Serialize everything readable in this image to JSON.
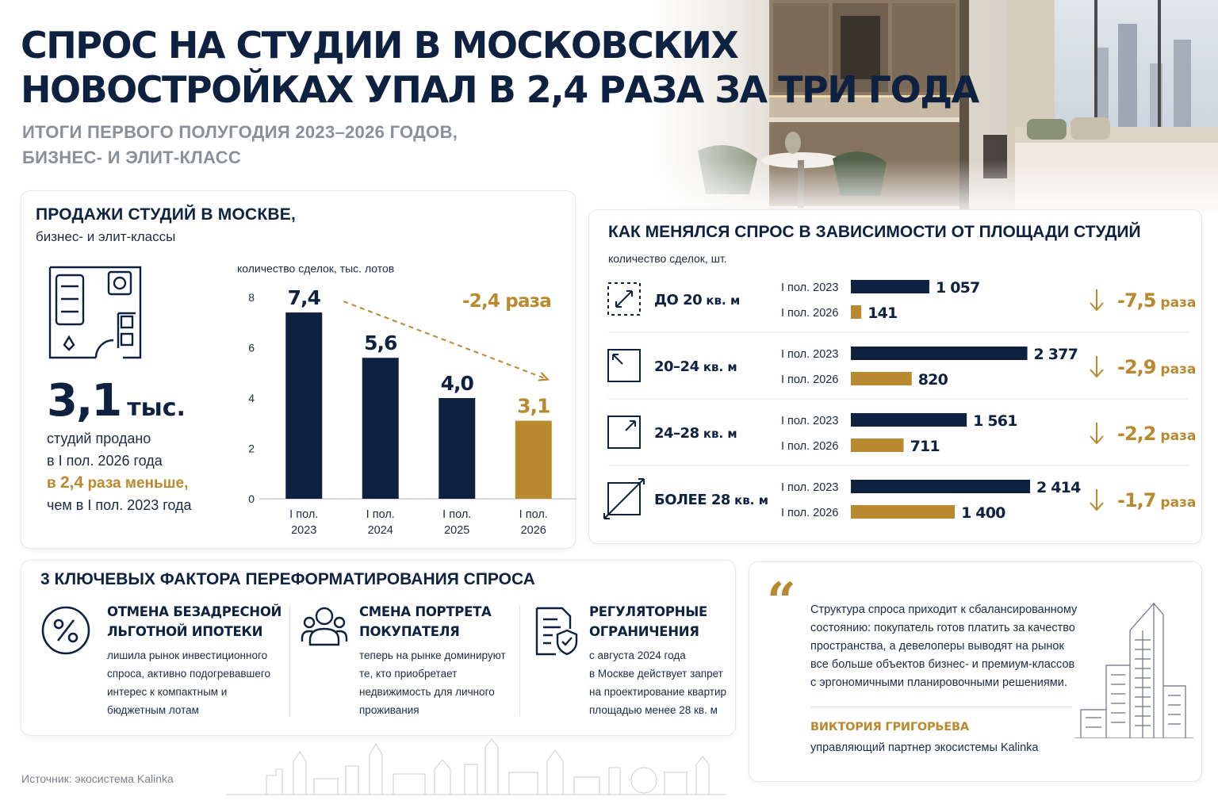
{
  "header": {
    "title_line1": "СПРОС НА СТУДИИ В МОСКОВСКИХ",
    "title_line2": "НОВОСТРОЙКАХ УПАЛ В 2,4 РАЗА ЗА ТРИ ГОДА",
    "subtitle_line1": "ИТОГИ ПЕРВОГО ПОЛУГОДИЯ 2023–2026 ГОДОВ,",
    "subtitle_line2": "БИЗНЕС- И ЭЛИТ-КЛАСС"
  },
  "sales": {
    "title": "ПРОДАЖИ СТУДИЙ В МОСКВЕ,",
    "subtitle": "бизнес- и элит-классы",
    "big_number": "3,1",
    "big_unit": "тыс.",
    "desc_line1": "студий продано",
    "desc_line2": "в I пол. 2026 года",
    "desc_line3_prefix": "в ",
    "desc_line3_value": "2,4",
    "desc_line3_suffix": " раза меньше,",
    "desc_line4": "чем в I пол. 2023 года"
  },
  "quote": {
    "mark": "“",
    "line1": "Структура спроса приходит к сбалансированному",
    "line2": "состоянию: покупатель готов платить за качество",
    "line3": "пространства, а девелоперы выводят на рынок",
    "line4": "все больше объектов бизнес- и премиум-классов",
    "line5": "с эргономичными планировочными решениями.",
    "author": "ВИКТОРИЯ ГРИГОРЬЕВА",
    "role": "управляющий партнер экосистемы Kalinka"
  },
  "factors": {
    "title": "3  КЛЮЧЕВЫХ ФАКТОРА ПЕРЕФОРМАТИРОВАНИЯ СПРОСА",
    "items": [
      {
        "icon": "percent-icon",
        "heading_line1": "ОТМЕНА БЕЗАДРЕСНОЙ",
        "heading_line2": "ЛЬГОТНОЙ ИПОТЕКИ",
        "body_line1": "лишила рынок инвестиционного",
        "body_line2": "спроса, активно подогревавшего",
        "body_line3": "интерес к компактным и",
        "body_line4": "бюджетным лотам"
      },
      {
        "icon": "people-icon",
        "heading_line1": "СМЕНА ПОРТРЕТА",
        "heading_line2": "ПОКУПАТЕЛЯ",
        "body_line1": "теперь на рынке доминируют",
        "body_line2": "те, кто приобретает",
        "body_line3": "недвижимость для личного",
        "body_line4": "проживания"
      },
      {
        "icon": "shield-document-icon",
        "heading_line1": "РЕГУЛЯТОРНЫЕ",
        "heading_line2": "ОГРАНИЧЕНИЯ",
        "body_line1": "с августа 2024 года",
        "body_line2": "в Москве действует запрет",
        "body_line3": "на проектирование квартир",
        "body_line4": "площадью менее 28 кв. м"
      }
    ]
  },
  "source": "Источник: экосистема Kalinka",
  "colors": {
    "navy": "#0f2140",
    "gold": "#b8892e",
    "gray": "#8a8f98"
  },
  "chart_data": [
    {
      "type": "bar",
      "title": "ПРОДАЖИ СТУДИЙ В МОСКВЕ, бизнес- и элит-классы",
      "ylabel": "количество сделок, тыс. лотов",
      "categories": [
        [
          "I пол.",
          "2023"
        ],
        [
          "I пол.",
          "2024"
        ],
        [
          "I пол.",
          "2025"
        ],
        [
          "I пол.",
          "2026"
        ]
      ],
      "values": [
        7.4,
        5.6,
        4.0,
        3.1
      ],
      "value_labels": [
        "7,4",
        "5,6",
        "4,0",
        "3,1"
      ],
      "highlight_index": 3,
      "yticks": [
        0,
        2,
        4,
        6,
        8
      ],
      "ylim": [
        0,
        8
      ],
      "grid": false,
      "trend_annotation": "-2,4 раза"
    },
    {
      "type": "bar",
      "orientation": "horizontal",
      "title": "КАК МЕНЯЛСЯ СПРОС В ЗАВИСИМОСТИ ОТ ПЛОЩАДИ СТУДИЙ",
      "unit_label": "количество сделок, шт.",
      "series_names": [
        "I пол. 2023",
        "I пол. 2026"
      ],
      "xlim": [
        0,
        2414
      ],
      "groups": [
        {
          "icon": "area-small-icon",
          "label_main": "ДО 20",
          "label_unit": " кв. м",
          "values": [
            1057,
            141
          ],
          "value_labels": [
            "1 057",
            "141"
          ],
          "change_value": "-7,5",
          "change_unit": " раза"
        },
        {
          "icon": "area-medium-icon",
          "label_main": "20–24",
          "label_unit": " кв. м",
          "values": [
            2377,
            820
          ],
          "value_labels": [
            "2 377",
            "820"
          ],
          "change_value": "-2,9",
          "change_unit": " раза"
        },
        {
          "icon": "area-large-icon",
          "label_main": "24–28",
          "label_unit": " кв. м",
          "values": [
            1561,
            711
          ],
          "value_labels": [
            "1 561",
            "711"
          ],
          "change_value": "-2,2",
          "change_unit": " раза"
        },
        {
          "icon": "area-xlarge-icon",
          "label_main": "БОЛЕЕ 28",
          "label_unit": " кв. м",
          "values": [
            2414,
            1400
          ],
          "value_labels": [
            "2 414",
            "1 400"
          ],
          "change_value": "-1,7",
          "change_unit": " раза"
        }
      ]
    }
  ]
}
